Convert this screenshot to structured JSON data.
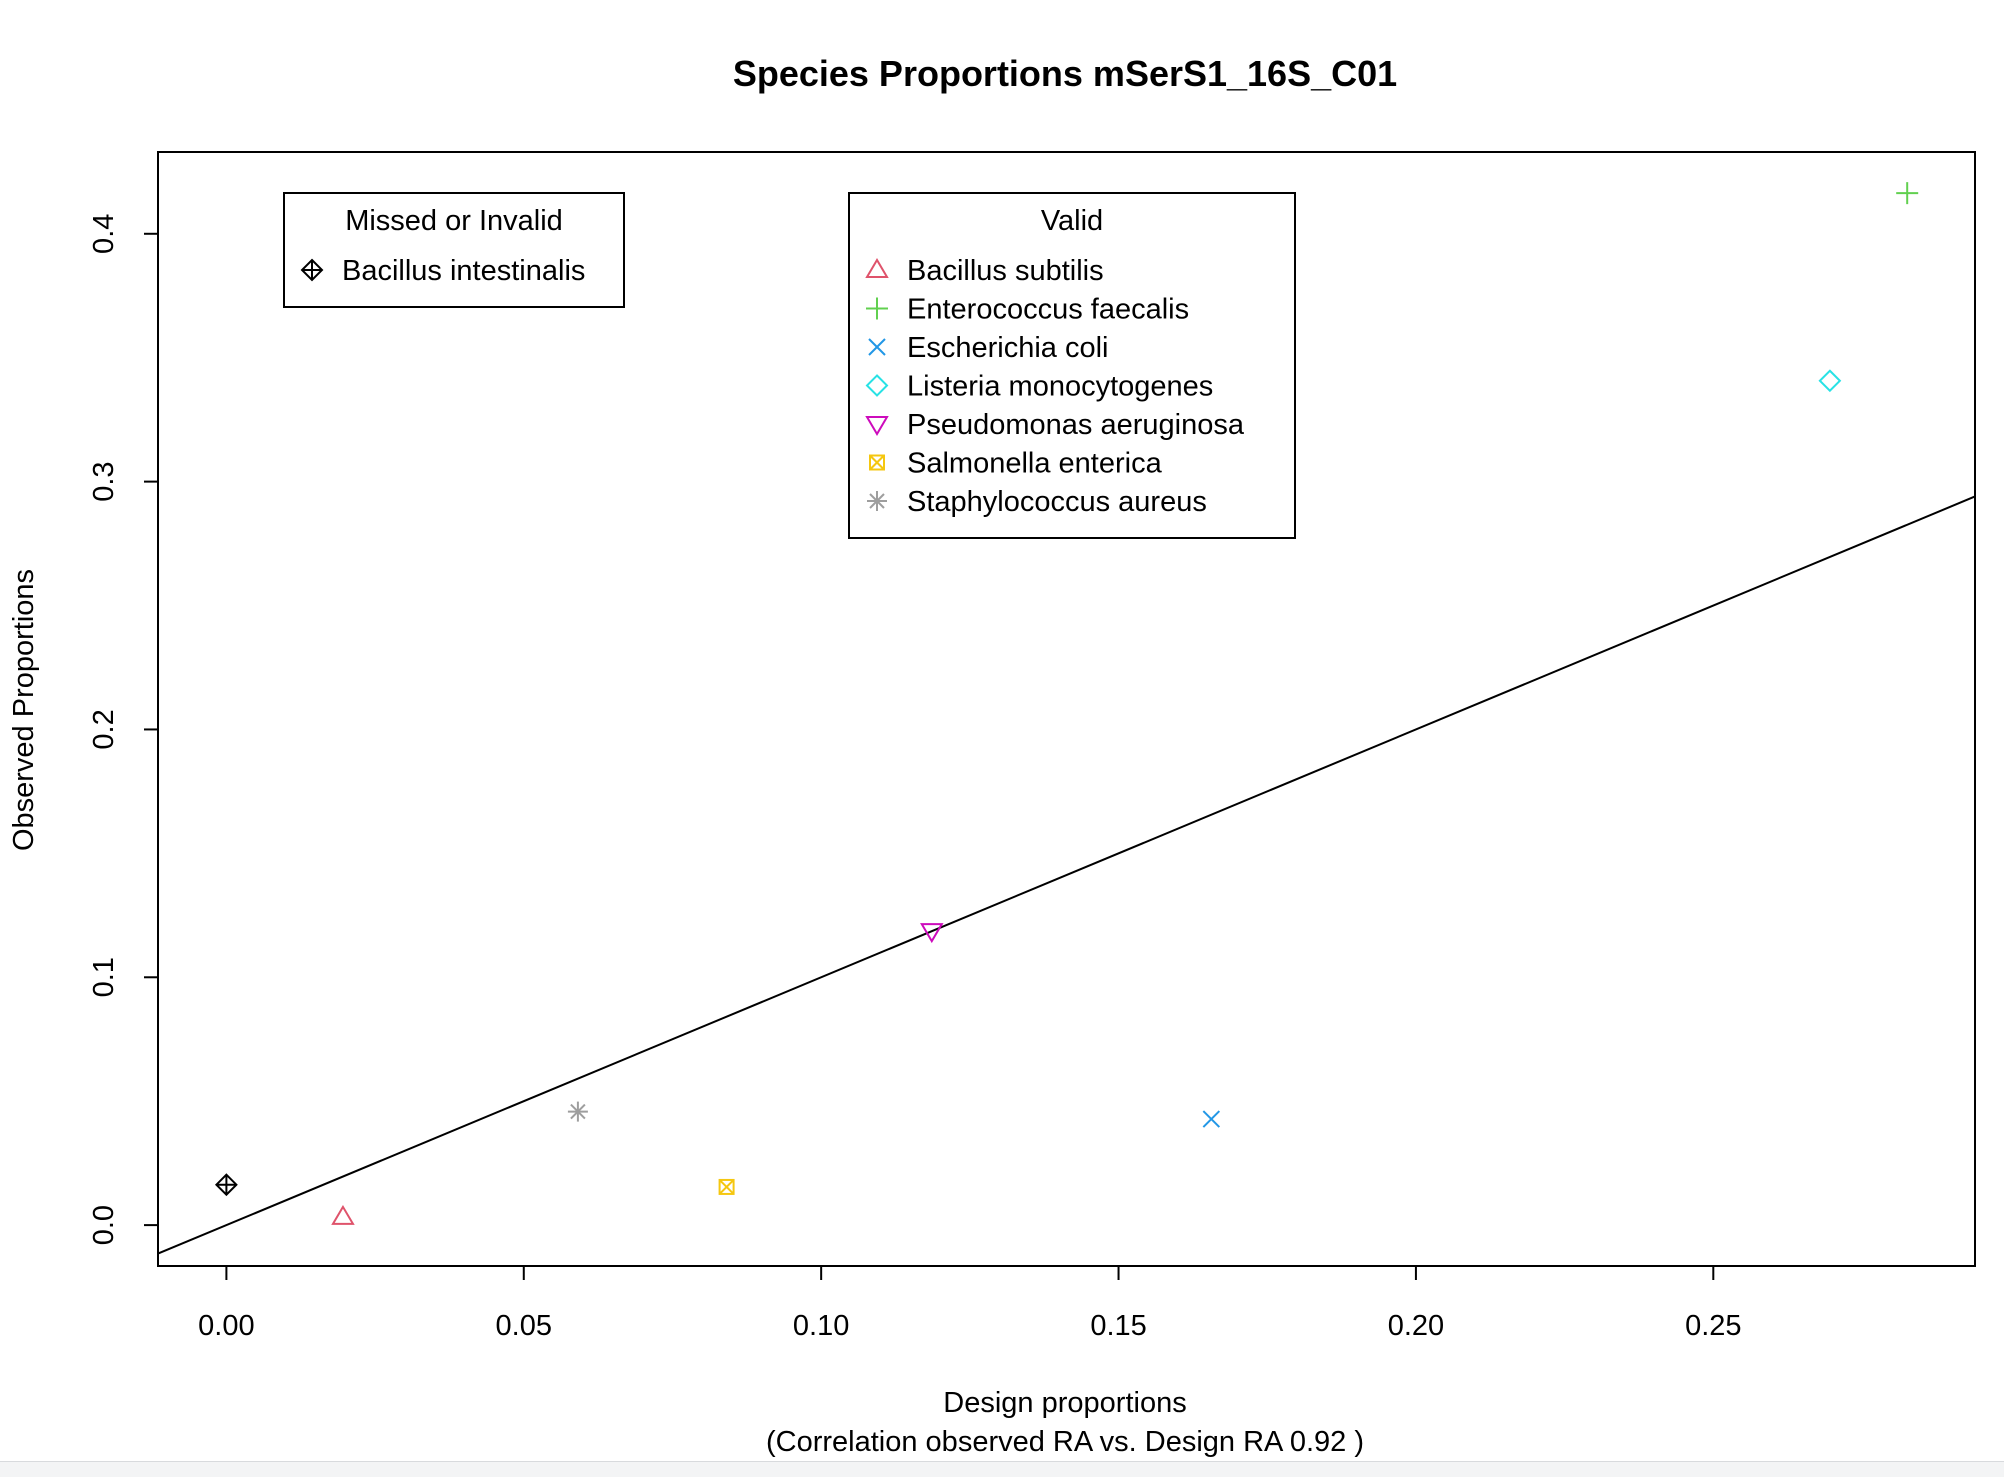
{
  "chart_data": {
    "type": "scatter",
    "title": "Species Proportions mSerS1_16S_C01",
    "xlabel": "Design proportions",
    "xlabel_sub": "(Correlation observed RA vs. Design RA  0.92 )",
    "ylabel": "Observed Proportions",
    "xlim": [
      -0.0115,
      0.294
    ],
    "ylim": [
      -0.0165,
      0.433
    ],
    "x_ticks": [
      0.0,
      0.05,
      0.1,
      0.15,
      0.2,
      0.25
    ],
    "x_tick_labels": [
      "0.00",
      "0.05",
      "0.10",
      "0.15",
      "0.20",
      "0.25"
    ],
    "y_ticks": [
      0.0,
      0.1,
      0.2,
      0.3,
      0.4
    ],
    "y_tick_labels": [
      "0.0",
      "0.1",
      "0.2",
      "0.3",
      "0.4"
    ],
    "reference_line": {
      "intercept": 0,
      "slope": 1
    },
    "grid": false,
    "series": [
      {
        "name": "Bacillus subtilis",
        "group": "valid",
        "marker": "triangle-up",
        "color": "#DF536B",
        "x": 0.0196,
        "y": 0.0033
      },
      {
        "name": "Enterococcus faecalis",
        "group": "valid",
        "marker": "plus",
        "color": "#61D04F",
        "x": 0.2826,
        "y": 0.4164
      },
      {
        "name": "Escherichia coli",
        "group": "valid",
        "marker": "cross",
        "color": "#2297E6",
        "x": 0.1656,
        "y": 0.0428
      },
      {
        "name": "Listeria monocytogenes",
        "group": "valid",
        "marker": "diamond",
        "color": "#28E2E5",
        "x": 0.2696,
        "y": 0.3407
      },
      {
        "name": "Pseudomonas aeruginosa",
        "group": "valid",
        "marker": "triangle-down",
        "color": "#CD0BBC",
        "x": 0.1186,
        "y": 0.1186
      },
      {
        "name": "Salmonella enterica",
        "group": "valid",
        "marker": "square-x",
        "color": "#F5C710",
        "x": 0.0841,
        "y": 0.0154
      },
      {
        "name": "Staphylococcus aureus",
        "group": "valid",
        "marker": "asterisk",
        "color": "#9E9E9E",
        "x": 0.0591,
        "y": 0.0458
      },
      {
        "name": "Bacillus intestinalis",
        "group": "missed",
        "marker": "diamond-plus",
        "color": "#000000",
        "x": 0.0,
        "y": 0.0163
      }
    ],
    "legends": [
      {
        "title": "Missed or Invalid",
        "group": "missed",
        "position": "top-left"
      },
      {
        "title": "Valid",
        "group": "valid",
        "position": "top-center"
      }
    ]
  }
}
